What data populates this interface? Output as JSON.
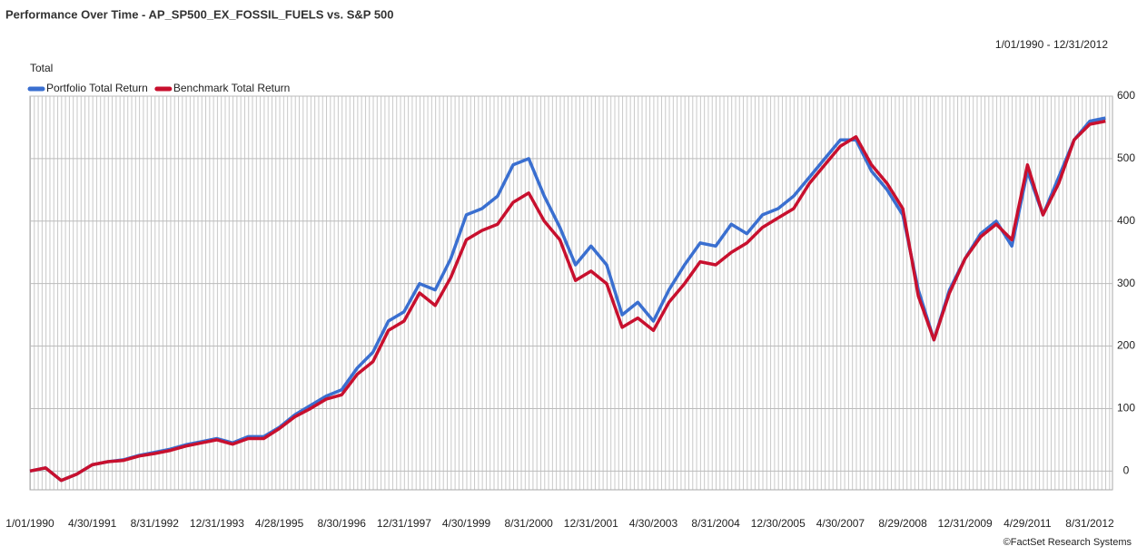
{
  "chart_data": {
    "type": "line",
    "title": "Performance Over Time - AP_SP500_EX_FOSSIL_FUELS vs. S&P 500",
    "date_range": "1/01/1990 - 12/31/2012",
    "y_label": "Total",
    "source": "©FactSet Research Systems",
    "categories": [
      "1/01/1990",
      null,
      null,
      null,
      "4/30/1991",
      null,
      null,
      null,
      "8/31/1992",
      null,
      null,
      null,
      "12/31/1993",
      null,
      null,
      null,
      "4/28/1995",
      null,
      null,
      null,
      "8/30/1996",
      null,
      null,
      null,
      "12/31/1997",
      null,
      null,
      null,
      "4/30/1999",
      null,
      null,
      null,
      "8/31/2000",
      null,
      null,
      null,
      "12/31/2001",
      null,
      null,
      null,
      "4/30/2003",
      null,
      null,
      null,
      "8/31/2004",
      null,
      null,
      null,
      "12/30/2005",
      null,
      null,
      null,
      "4/30/2007",
      null,
      null,
      null,
      "8/29/2008",
      null,
      null,
      null,
      "12/31/2009",
      null,
      null,
      null,
      "4/29/2011",
      null,
      null,
      null,
      "8/31/2012",
      null
    ],
    "series": [
      {
        "name": "Portfolio Total Return",
        "color": "#3a6fd0",
        "values": [
          0,
          5,
          -15,
          -5,
          10,
          15,
          18,
          25,
          30,
          35,
          42,
          47,
          52,
          45,
          55,
          55,
          70,
          90,
          105,
          120,
          130,
          165,
          190,
          240,
          255,
          300,
          290,
          340,
          410,
          420,
          440,
          490,
          500,
          440,
          390,
          330,
          360,
          330,
          250,
          270,
          240,
          290,
          330,
          365,
          360,
          395,
          380,
          410,
          420,
          440,
          470,
          500,
          530,
          530,
          480,
          450,
          410,
          290,
          210,
          290,
          340,
          380,
          400,
          360,
          480,
          410,
          470,
          530,
          560,
          565
        ]
      },
      {
        "name": "Benchmark Total Return",
        "color": "#c8102e",
        "values": [
          0,
          5,
          -15,
          -5,
          10,
          15,
          17,
          24,
          28,
          33,
          40,
          45,
          50,
          43,
          52,
          52,
          68,
          87,
          100,
          115,
          122,
          155,
          175,
          225,
          240,
          285,
          265,
          310,
          370,
          385,
          395,
          430,
          445,
          400,
          370,
          305,
          320,
          300,
          230,
          245,
          225,
          270,
          300,
          335,
          330,
          350,
          365,
          390,
          405,
          420,
          460,
          490,
          520,
          535,
          490,
          460,
          420,
          280,
          210,
          285,
          340,
          375,
          395,
          370,
          490,
          410,
          460,
          530,
          555,
          560
        ]
      }
    ],
    "ylim": [
      -30,
      600
    ],
    "yticks": [
      0,
      100,
      200,
      300,
      400,
      500,
      600
    ],
    "grid": true
  }
}
